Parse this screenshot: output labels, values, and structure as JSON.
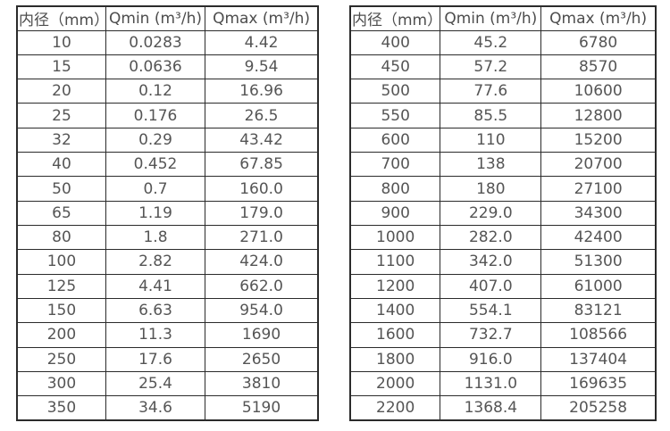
{
  "colors": {
    "background": "#ffffff",
    "border": "#2b2b2b",
    "text": "#555555",
    "header_text": "#4d4d4d"
  },
  "tables": [
    {
      "headers": [
        "内径（mm）",
        "Qmin (m³/h)",
        "Qmax (m³/h)"
      ],
      "rows": [
        [
          "10",
          "0.0283",
          "4.42"
        ],
        [
          "15",
          "0.0636",
          "9.54"
        ],
        [
          "20",
          "0.12",
          "16.96"
        ],
        [
          "25",
          "0.176",
          "26.5"
        ],
        [
          "32",
          "0.29",
          "43.42"
        ],
        [
          "40",
          "0.452",
          "67.85"
        ],
        [
          "50",
          "0.7",
          "160.0"
        ],
        [
          "65",
          "1.19",
          "179.0"
        ],
        [
          "80",
          "1.8",
          "271.0"
        ],
        [
          "100",
          "2.82",
          "424.0"
        ],
        [
          "125",
          "4.41",
          "662.0"
        ],
        [
          "150",
          "6.63",
          "954.0"
        ],
        [
          "200",
          "11.3",
          "1690"
        ],
        [
          "250",
          "17.6",
          "2650"
        ],
        [
          "300",
          "25.4",
          "3810"
        ],
        [
          "350",
          "34.6",
          "5190"
        ]
      ]
    },
    {
      "headers": [
        "内径（mm）",
        "Qmin (m³/h)",
        "Qmax (m³/h)"
      ],
      "rows": [
        [
          "400",
          "45.2",
          "6780"
        ],
        [
          "450",
          "57.2",
          "8570"
        ],
        [
          "500",
          "77.6",
          "10600"
        ],
        [
          "550",
          "85.5",
          "12800"
        ],
        [
          "600",
          "110",
          "15200"
        ],
        [
          "700",
          "138",
          "20700"
        ],
        [
          "800",
          "180",
          "27100"
        ],
        [
          "900",
          "229.0",
          "34300"
        ],
        [
          "1000",
          "282.0",
          "42400"
        ],
        [
          "1100",
          "342.0",
          "51300"
        ],
        [
          "1200",
          "407.0",
          "61000"
        ],
        [
          "1400",
          "554.1",
          "83121"
        ],
        [
          "1600",
          "732.7",
          "108566"
        ],
        [
          "1800",
          "916.0",
          "137404"
        ],
        [
          "2000",
          "1131.0",
          "169635"
        ],
        [
          "2200",
          "1368.4",
          "205258"
        ]
      ]
    }
  ]
}
